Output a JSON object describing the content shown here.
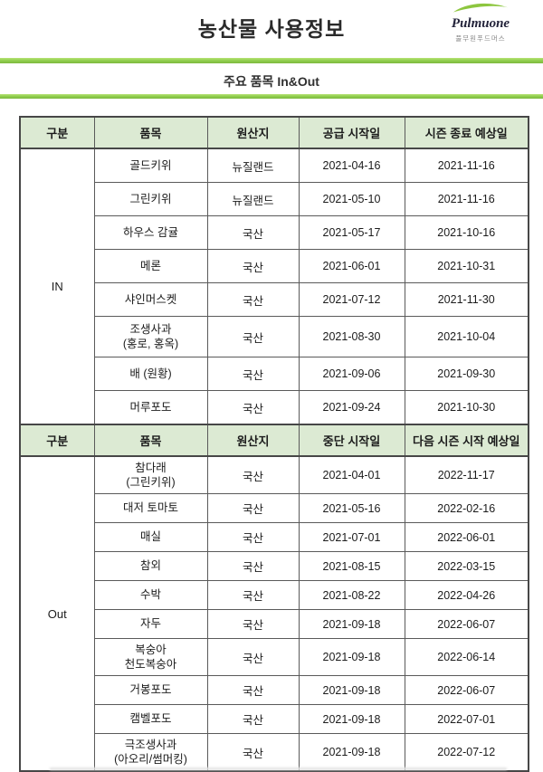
{
  "header": {
    "title": "농산물 사용정보",
    "logo": {
      "brand": "Pulmuone",
      "sub": "풀무원푸드머스"
    }
  },
  "subtitle": "주요 품목 In&Out",
  "colors": {
    "accent_green": "#92d050",
    "logo_green": "#8dc63f",
    "table_header_bg": "#dcead3",
    "table_border": "#5a5a5a"
  },
  "table": {
    "sections": [
      {
        "section_label": "IN",
        "row_class": "s1",
        "columns": [
          "구분",
          "품목",
          "원산지",
          "공급 시작일",
          "시즌 종료 예상일"
        ],
        "rows": [
          {
            "item": "골드키위",
            "origin": "뉴질랜드",
            "date1": "2021-04-16",
            "date2": "2021-11-16"
          },
          {
            "item": "그린키위",
            "origin": "뉴질랜드",
            "date1": "2021-05-10",
            "date2": "2021-11-16"
          },
          {
            "item": "하우스 감귤",
            "origin": "국산",
            "date1": "2021-05-17",
            "date2": "2021-10-16"
          },
          {
            "item": "메론",
            "origin": "국산",
            "date1": "2021-06-01",
            "date2": "2021-10-31"
          },
          {
            "item": "샤인머스켓",
            "origin": "국산",
            "date1": "2021-07-12",
            "date2": "2021-11-30"
          },
          {
            "item": "조생사과\n(홍로, 홍옥)",
            "origin": "국산",
            "date1": "2021-08-30",
            "date2": "2021-10-04"
          },
          {
            "item": "배 (원황)",
            "origin": "국산",
            "date1": "2021-09-06",
            "date2": "2021-09-30"
          },
          {
            "item": "머루포도",
            "origin": "국산",
            "date1": "2021-09-24",
            "date2": "2021-10-30"
          }
        ]
      },
      {
        "section_label": "Out",
        "row_class": "s2",
        "columns": [
          "구분",
          "품목",
          "원산지",
          "중단 시작일",
          "다음 시즌 시작 예상일"
        ],
        "rows": [
          {
            "item": "참다래\n(그린키위)",
            "origin": "국산",
            "date1": "2021-04-01",
            "date2": "2022-11-17"
          },
          {
            "item": "대저 토마토",
            "origin": "국산",
            "date1": "2021-05-16",
            "date2": "2022-02-16"
          },
          {
            "item": "매실",
            "origin": "국산",
            "date1": "2021-07-01",
            "date2": "2022-06-01"
          },
          {
            "item": "참외",
            "origin": "국산",
            "date1": "2021-08-15",
            "date2": "2022-03-15"
          },
          {
            "item": "수박",
            "origin": "국산",
            "date1": "2021-08-22",
            "date2": "2022-04-26"
          },
          {
            "item": "자두",
            "origin": "국산",
            "date1": "2021-09-18",
            "date2": "2022-06-07"
          },
          {
            "item": "복숭아\n천도복숭아",
            "origin": "국산",
            "date1": "2021-09-18",
            "date2": "2022-06-14"
          },
          {
            "item": "거봉포도",
            "origin": "국산",
            "date1": "2021-09-18",
            "date2": "2022-06-07"
          },
          {
            "item": "캠벨포도",
            "origin": "국산",
            "date1": "2021-09-18",
            "date2": "2022-07-01"
          },
          {
            "item": "극조생사과\n(아오리/썸머킹)",
            "origin": "국산",
            "date1": "2021-09-18",
            "date2": "2022-07-12"
          }
        ]
      }
    ]
  }
}
